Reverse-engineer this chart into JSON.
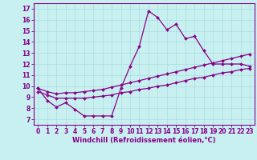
{
  "xlabel": "Windchill (Refroidissement éolien,°C)",
  "bg_color": "#c8f0f0",
  "line_color": "#880088",
  "grid_color": "#aadddd",
  "x_ticks": [
    0,
    1,
    2,
    3,
    4,
    5,
    6,
    7,
    8,
    9,
    10,
    11,
    12,
    13,
    14,
    15,
    16,
    17,
    18,
    19,
    20,
    21,
    22,
    23
  ],
  "y_ticks": [
    7,
    8,
    9,
    10,
    11,
    12,
    13,
    14,
    15,
    16,
    17
  ],
  "ylim": [
    6.5,
    17.5
  ],
  "xlim": [
    -0.5,
    23.5
  ],
  "main_line": [
    9.8,
    8.7,
    8.1,
    8.5,
    7.9,
    7.3,
    7.3,
    7.3,
    7.3,
    9.8,
    11.8,
    13.6,
    16.8,
    16.2,
    15.1,
    15.6,
    14.3,
    14.5,
    13.2,
    12.0,
    12.0,
    12.0,
    12.0,
    11.8
  ],
  "line_lower": [
    9.5,
    9.2,
    8.9,
    8.9,
    8.9,
    8.9,
    9.0,
    9.1,
    9.2,
    9.4,
    9.5,
    9.7,
    9.8,
    10.0,
    10.1,
    10.3,
    10.5,
    10.7,
    10.8,
    11.0,
    11.2,
    11.3,
    11.5,
    11.6
  ],
  "line_upper": [
    9.8,
    9.5,
    9.3,
    9.4,
    9.4,
    9.5,
    9.6,
    9.7,
    9.9,
    10.1,
    10.3,
    10.5,
    10.7,
    10.9,
    11.1,
    11.3,
    11.5,
    11.7,
    11.9,
    12.1,
    12.3,
    12.5,
    12.7,
    12.9
  ],
  "tick_fontsize": 5.5,
  "label_fontsize": 6.0
}
